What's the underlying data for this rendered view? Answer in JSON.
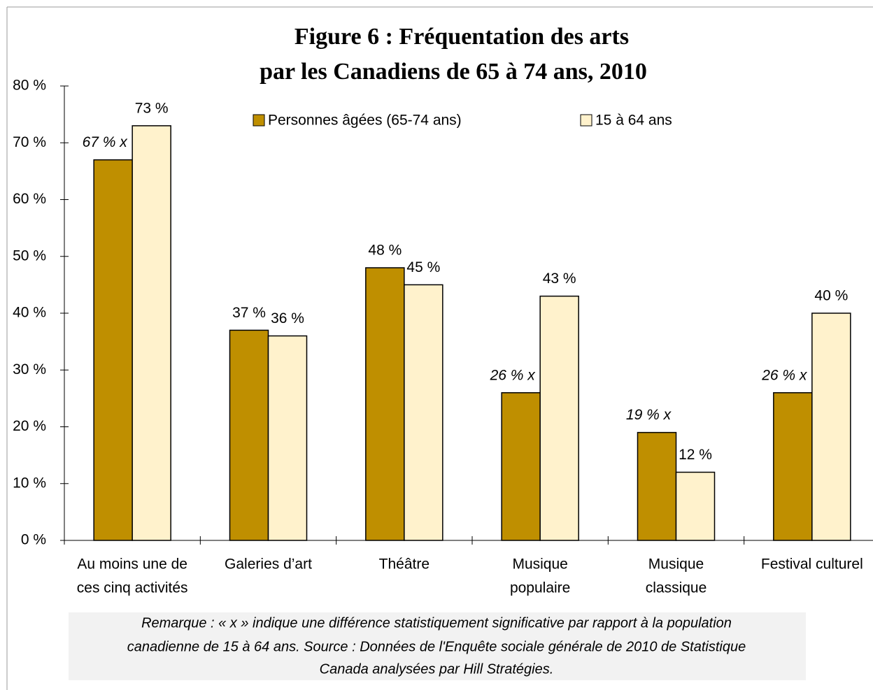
{
  "chart_data": {
    "type": "bar",
    "title": [
      "Figure 6 : Fréquentation des arts",
      "par les Canadiens de 65 à 74 ans,  2010"
    ],
    "categories": [
      [
        "Au moins une de",
        "ces cinq activités"
      ],
      [
        "Galeries d’art"
      ],
      [
        "Théâtre"
      ],
      [
        "Musique",
        "populaire"
      ],
      [
        "Musique",
        "classique"
      ],
      [
        "Festival culturel"
      ]
    ],
    "series": [
      {
        "name": "Personnes âgées (65-74 ans)",
        "color": "#bf8f00",
        "values": [
          67,
          37,
          48,
          26,
          19,
          26
        ],
        "value_labels": [
          "67 % x",
          "37 %",
          "48 %",
          "26 % x",
          "19 % x",
          "26 % x"
        ]
      },
      {
        "name": "15 à 64 ans",
        "color": "#fff2cc",
        "values": [
          73,
          36,
          45,
          43,
          12,
          40
        ],
        "value_labels": [
          "73 %",
          "36 %",
          "45 %",
          "43 %",
          "12 %",
          "40 %"
        ]
      }
    ],
    "ylim": [
      0,
      80
    ],
    "yticks": [
      {
        "value": 0,
        "label": "0 %"
      },
      {
        "value": 10,
        "label": "10 %"
      },
      {
        "value": 20,
        "label": "20 %"
      },
      {
        "value": 30,
        "label": "30 %"
      },
      {
        "value": 40,
        "label": "40 %"
      },
      {
        "value": 50,
        "label": "50 %"
      },
      {
        "value": 60,
        "label": "60 %"
      },
      {
        "value": 70,
        "label": "70 %"
      },
      {
        "value": 80,
        "label": "80 %"
      }
    ],
    "note": [
      "Remarque : « x » indique une différence statistiquement significative par rapport à la population",
      "canadienne de 15 à 64 ans. Source : Données de l'Enquête sociale générale de 2010 de Statistique",
      "Canada analysées par Hill Stratégies."
    ]
  }
}
